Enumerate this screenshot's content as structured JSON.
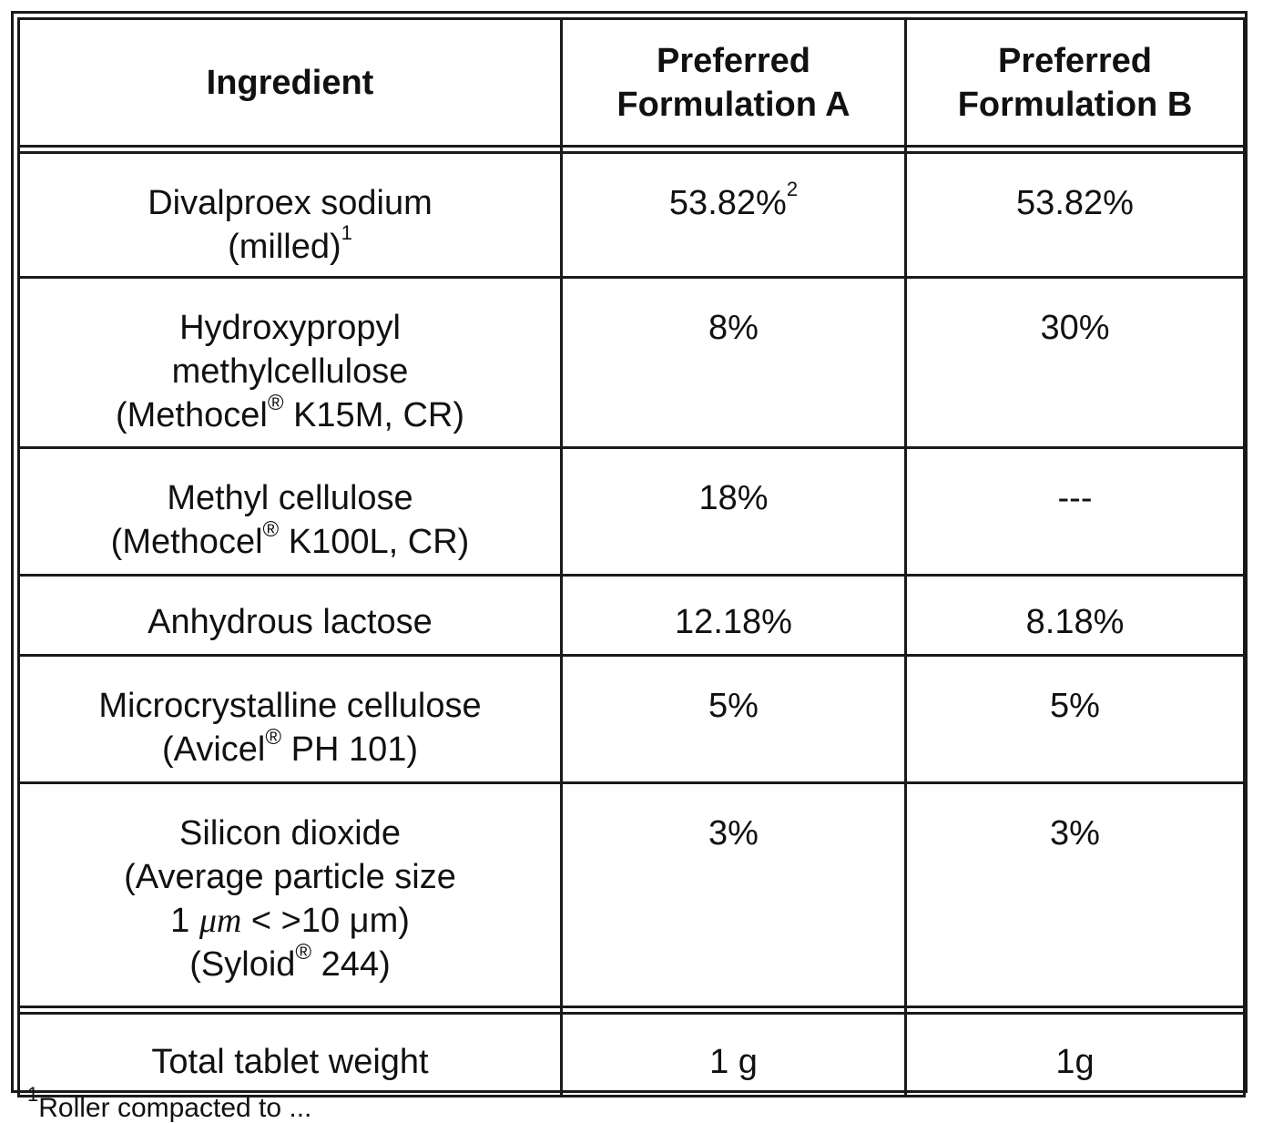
{
  "table": {
    "headers": {
      "ingredient": "Ingredient",
      "formulation_a": [
        "Preferred",
        "Formulation A"
      ],
      "formulation_b": [
        "Preferred",
        "Formulation B"
      ]
    },
    "rows": [
      {
        "ingredient_lines": [
          "Divalproex sodium",
          "(milled)"
        ],
        "ingredient_footnote": "1",
        "a": "53.82%",
        "a_footnote": "2",
        "b": "53.82%"
      },
      {
        "ingredient_lines": [
          "Hydroxypropyl",
          "methylcellulose",
          "(Methocel",
          "K15M, CR)"
        ],
        "registered": "®",
        "a": "8%",
        "b": "30%"
      },
      {
        "ingredient_lines": [
          "Methyl cellulose",
          "(Methocel",
          "K100L, CR)"
        ],
        "registered": "®",
        "a": "18%",
        "b": "---"
      },
      {
        "ingredient_lines": [
          "Anhydrous lactose"
        ],
        "a": "12.18%",
        "b": "8.18%"
      },
      {
        "ingredient_lines": [
          "Microcrystalline cellulose",
          "(Avicel",
          "PH 101)"
        ],
        "registered": "®",
        "a": "5%",
        "b": "5%"
      },
      {
        "ingredient_lines": [
          "Silicon dioxide",
          "(Average particle size",
          "1",
          "μm",
          "< >10 μm)",
          "(Syloid",
          "244)"
        ],
        "registered": "®",
        "a": "3%",
        "b": "3%"
      }
    ],
    "total": {
      "label": "Total tablet weight",
      "a": "1 g",
      "b": "1g"
    }
  },
  "footnote": {
    "marker": "1",
    "text": "Roller compacted to ..."
  }
}
